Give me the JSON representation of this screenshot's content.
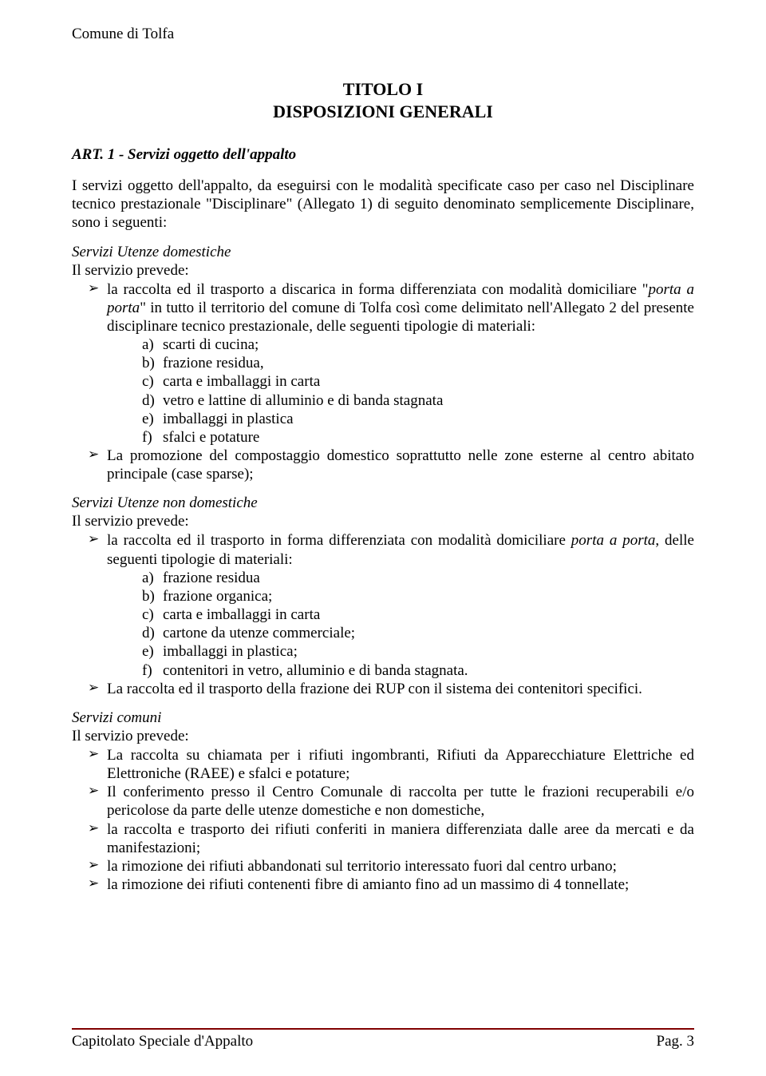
{
  "header": "Comune di Tolfa",
  "title_line1": "TITOLO I",
  "title_line2": "DISPOSIZIONI GENERALI",
  "article_heading": "ART. 1 - Servizi oggetto dell'appalto",
  "intro": "I servizi oggetto dell'appalto, da eseguirsi con le modalità specificate caso per caso nel Disciplinare tecnico prestazionale \"Disciplinare\" (Allegato 1) di seguito denominato semplicemente Disciplinare, sono i seguenti:",
  "sec1": {
    "label": "Servizi Utenze domestiche",
    "intro": "Il servizio prevede:",
    "b1_pre": "la raccolta ed il trasporto a discarica in forma differenziata con modalità domiciliare \"",
    "b1_i1": "porta a porta",
    "b1_post": "\" in tutto il territorio del comune di Tolfa così come delimitato nell'Allegato 2 del presente disciplinare tecnico prestazionale, delle seguenti tipologie di materiali:",
    "sub": [
      {
        "m": "a)",
        "t": "scarti di cucina;"
      },
      {
        "m": "b)",
        "t": "frazione residua,"
      },
      {
        "m": "c)",
        "t": "carta e imballaggi in carta"
      },
      {
        "m": "d)",
        "t": "vetro e lattine di alluminio e di banda stagnata"
      },
      {
        "m": "e)",
        "t": "imballaggi in plastica"
      },
      {
        "m": "f)",
        "t": "sfalci e potature"
      }
    ],
    "b2": "La promozione del compostaggio domestico soprattutto nelle zone esterne al centro abitato principale (case sparse);"
  },
  "sec2": {
    "label": "Servizi Utenze non domestiche",
    "intro": "Il servizio prevede:",
    "b1_pre": "la raccolta ed il trasporto in forma differenziata con modalità domiciliare ",
    "b1_i1": "porta a porta",
    "b1_post": ", delle seguenti tipologie di materiali:",
    "sub": [
      {
        "m": "a)",
        "t": "frazione residua"
      },
      {
        "m": "b)",
        "t": "frazione organica;"
      },
      {
        "m": "c)",
        "t": "carta e imballaggi in carta"
      },
      {
        "m": "d)",
        "t": "cartone da utenze commerciale;"
      },
      {
        "m": "e)",
        "t": "imballaggi in plastica;"
      },
      {
        "m": "f)",
        "t": "contenitori in vetro, alluminio e di banda stagnata."
      }
    ],
    "b2": "La raccolta ed il trasporto della frazione dei RUP con il sistema dei contenitori specifici."
  },
  "sec3": {
    "label": "Servizi comuni",
    "intro": "Il servizio prevede:",
    "bullets": [
      "La raccolta su chiamata per i rifiuti ingombranti, Rifiuti da Apparecchiature Elettriche ed Elettroniche (RAEE) e sfalci e potature;",
      "Il conferimento presso il Centro Comunale di raccolta per tutte le frazioni recuperabili e/o pericolose da parte delle utenze domestiche e non domestiche,",
      "la raccolta e trasporto dei rifiuti conferiti in maniera differenziata dalle aree da mercati e da manifestazioni;",
      "la rimozione dei rifiuti abbandonati sul territorio interessato fuori dal centro urbano;",
      "la rimozione dei rifiuti contenenti fibre di amianto fino ad un massimo di 4 tonnellate;"
    ]
  },
  "footer_left": "Capitolato Speciale d'Appalto",
  "footer_right": "Pag. 3",
  "colors": {
    "text": "#000000",
    "background": "#ffffff",
    "rule": "#800000"
  },
  "fonts": {
    "body_family": "Times New Roman",
    "body_size_pt": 14
  }
}
